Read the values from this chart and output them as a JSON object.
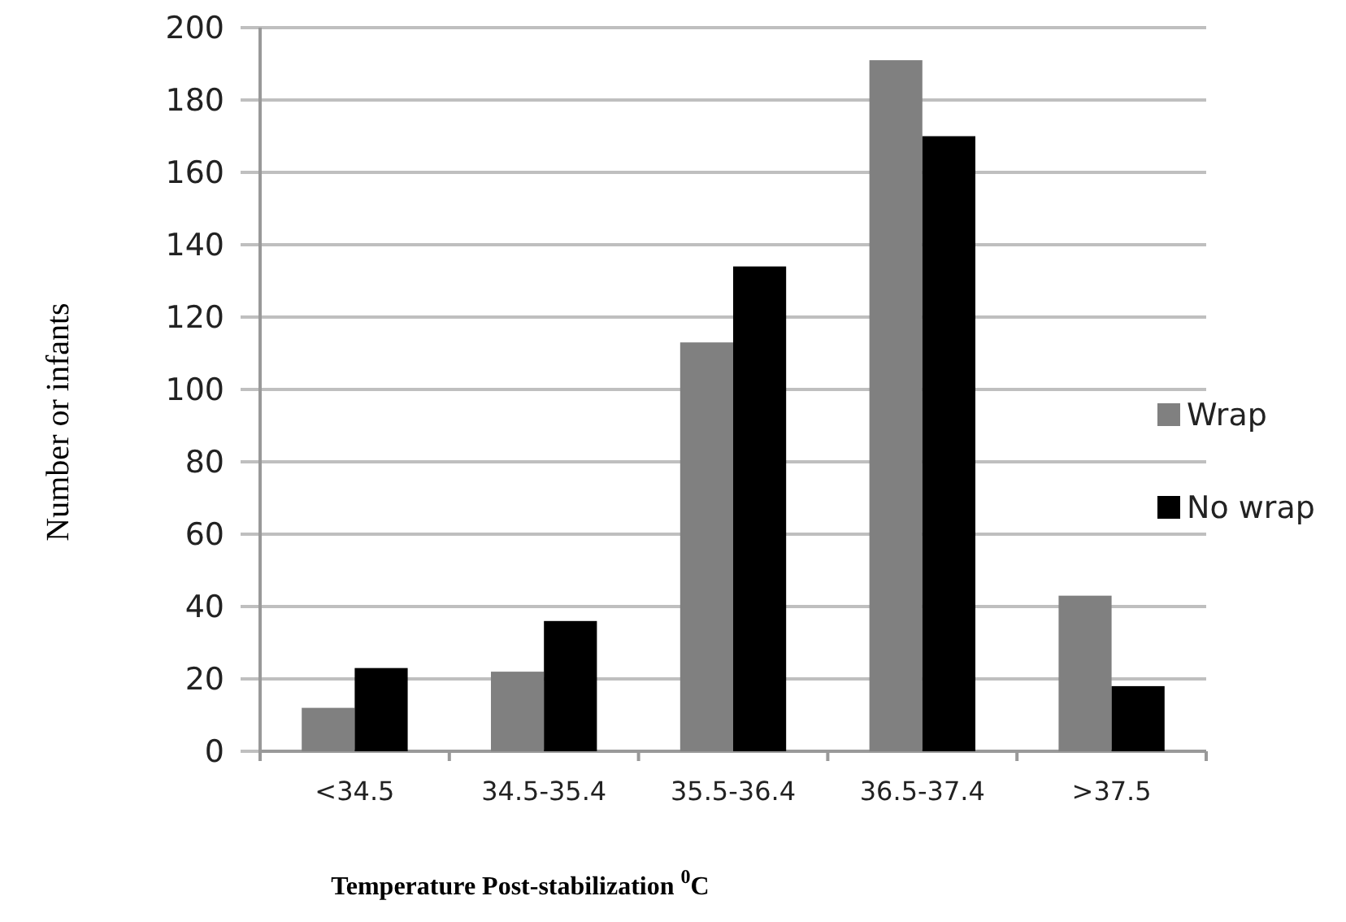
{
  "chart_data": {
    "type": "bar",
    "xlabel": "Temperature Post-stabilization $^{0}$C",
    "ylabel": "Number or infants",
    "categories": [
      "<34.5",
      "34.5-35.4",
      "35.5-36.4",
      "36.5-37.4",
      ">37.5"
    ],
    "series": [
      {
        "name": "Wrap",
        "color": "#808080",
        "values": [
          12,
          22,
          113,
          191,
          43
        ]
      },
      {
        "name": "No wrap",
        "color": "#000000",
        "values": [
          23,
          36,
          134,
          170,
          18
        ]
      }
    ],
    "ylim": [
      0,
      200
    ],
    "yticks": [
      0,
      20,
      40,
      60,
      80,
      100,
      120,
      140,
      160,
      180,
      200
    ],
    "grid": "y",
    "legend": "right"
  }
}
